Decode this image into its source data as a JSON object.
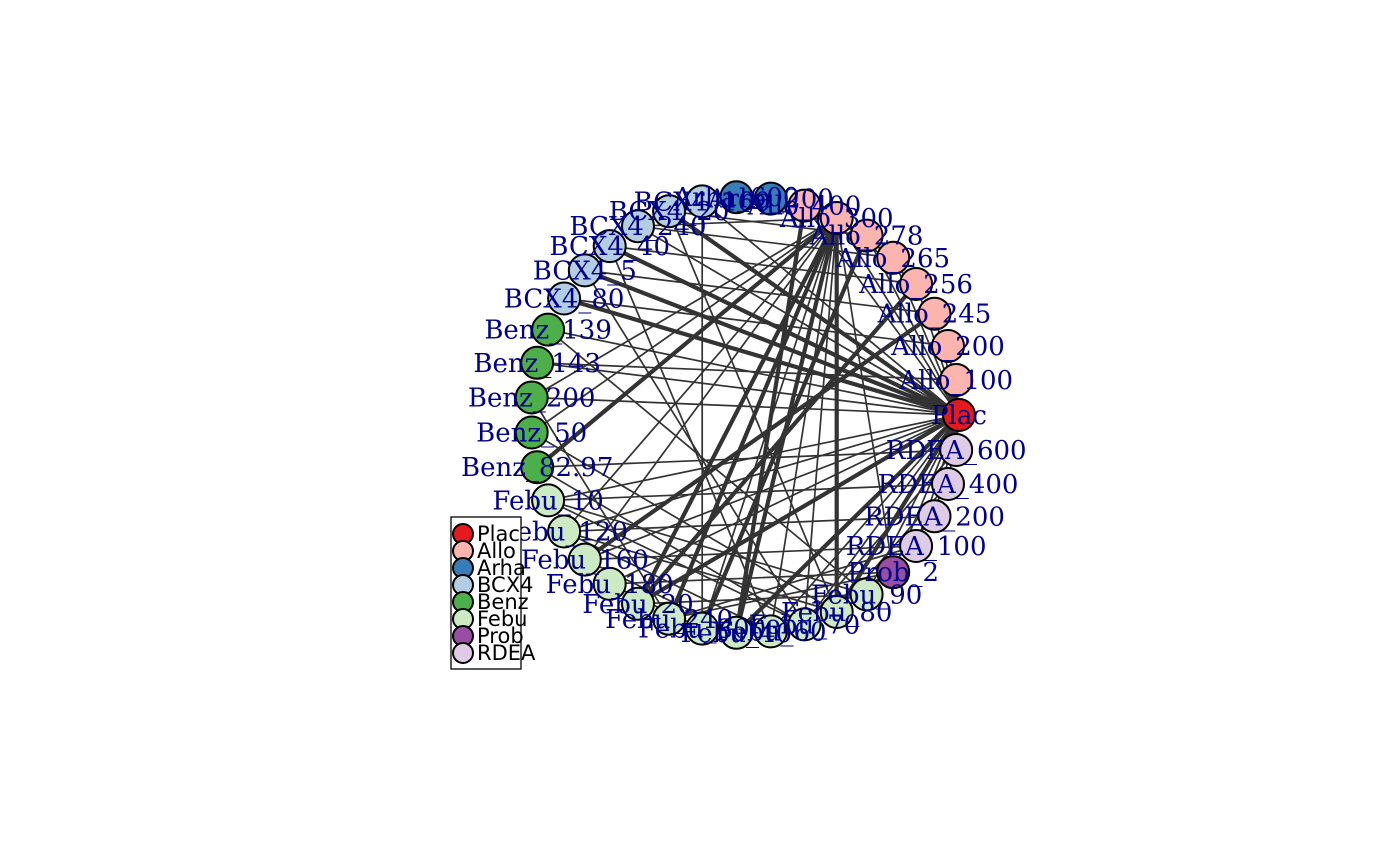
{
  "groups": [
    {
      "name": "Plac",
      "color": "#E41A1C"
    },
    {
      "name": "Allo",
      "color": "#FBB4AE"
    },
    {
      "name": "Arha",
      "color": "#377EB8"
    },
    {
      "name": "BCX4",
      "color": "#B3CDE3"
    },
    {
      "name": "Benz",
      "color": "#4DAF4A"
    },
    {
      "name": "Febu",
      "color": "#CCEBC5"
    },
    {
      "name": "Prob",
      "color": "#984EA3"
    },
    {
      "name": "RDEA",
      "color": "#DECBE4"
    }
  ],
  "nodes": [
    {
      "id": "Plac",
      "label": "Plac",
      "group": "Plac"
    },
    {
      "id": "Allo_100",
      "label": "Allo_100",
      "group": "Allo"
    },
    {
      "id": "Allo_200",
      "label": "Allo_200",
      "group": "Allo"
    },
    {
      "id": "Allo_245",
      "label": "Allo_245",
      "group": "Allo"
    },
    {
      "id": "Allo_256",
      "label": "Allo_256",
      "group": "Allo"
    },
    {
      "id": "Allo_265",
      "label": "Allo_265",
      "group": "Allo"
    },
    {
      "id": "Allo_278",
      "label": "Allo_278",
      "group": "Allo"
    },
    {
      "id": "Allo_300",
      "label": "Allo_300",
      "group": "Allo"
    },
    {
      "id": "Allo_400",
      "label": "Allo_400",
      "group": "Allo"
    },
    {
      "id": "Arha_200",
      "label": "Arha_200",
      "group": "Arha"
    },
    {
      "id": "Arha_600",
      "label": "Arha_600",
      "group": "Arha"
    },
    {
      "id": "BCX4_160",
      "label": "BCX4_160",
      "group": "BCX4"
    },
    {
      "id": "BCX4_20",
      "label": "BCX4_20",
      "group": "BCX4"
    },
    {
      "id": "BCX4_240",
      "label": "BCX4_240",
      "group": "BCX4"
    },
    {
      "id": "BCX4_40",
      "label": "BCX4_40",
      "group": "BCX4"
    },
    {
      "id": "BCX4_5",
      "label": "BCX4_5",
      "group": "BCX4"
    },
    {
      "id": "BCX4_80",
      "label": "BCX4_80",
      "group": "BCX4"
    },
    {
      "id": "Benz_139",
      "label": "Benz_139",
      "group": "Benz"
    },
    {
      "id": "Benz_143",
      "label": "Benz_143",
      "group": "Benz"
    },
    {
      "id": "Benz_200",
      "label": "Benz_200",
      "group": "Benz"
    },
    {
      "id": "Benz_50",
      "label": "Benz_50",
      "group": "Benz"
    },
    {
      "id": "Benz_82.97",
      "label": "Benz_82.97",
      "group": "Benz"
    },
    {
      "id": "Febu_10",
      "label": "Febu_10",
      "group": "Febu"
    },
    {
      "id": "Febu_120",
      "label": "Febu_120",
      "group": "Febu"
    },
    {
      "id": "Febu_160",
      "label": "Febu_160",
      "group": "Febu"
    },
    {
      "id": "Febu_180",
      "label": "Febu_180",
      "group": "Febu"
    },
    {
      "id": "Febu_20",
      "label": "Febu_20",
      "group": "Febu"
    },
    {
      "id": "Febu_240",
      "label": "Febu_240",
      "group": "Febu"
    },
    {
      "id": "Febu_300",
      "label": "Febu_300",
      "group": "Febu"
    },
    {
      "id": "Febu_40",
      "label": "Febu_40",
      "group": "Febu"
    },
    {
      "id": "Febu_60",
      "label": "Febu_60",
      "group": "Febu"
    },
    {
      "id": "Febu_70",
      "label": "Febu_70",
      "group": "Febu"
    },
    {
      "id": "Febu_80",
      "label": "Febu_80",
      "group": "Febu"
    },
    {
      "id": "Febu_90",
      "label": "Febu_90",
      "group": "Febu"
    },
    {
      "id": "Prob_2",
      "label": "Prob_2",
      "group": "Prob"
    },
    {
      "id": "RDEA_100",
      "label": "RDEA_100",
      "group": "RDEA"
    },
    {
      "id": "RDEA_200",
      "label": "RDEA_200",
      "group": "RDEA"
    },
    {
      "id": "RDEA_400",
      "label": "RDEA_400",
      "group": "RDEA"
    },
    {
      "id": "RDEA_600",
      "label": "RDEA_600",
      "group": "RDEA"
    }
  ],
  "edges": [
    {
      "from": "Plac",
      "to": "BCX4_20",
      "weight": 3
    },
    {
      "from": "Plac",
      "to": "BCX4_40",
      "weight": 3
    },
    {
      "from": "Plac",
      "to": "BCX4_5",
      "weight": 3
    },
    {
      "from": "Plac",
      "to": "BCX4_80",
      "weight": 3
    },
    {
      "from": "Plac",
      "to": "BCX4_160",
      "weight": 1
    },
    {
      "from": "Plac",
      "to": "BCX4_240",
      "weight": 1
    },
    {
      "from": "Plac",
      "to": "Benz_139",
      "weight": 1
    },
    {
      "from": "Plac",
      "to": "Benz_143",
      "weight": 1
    },
    {
      "from": "Plac",
      "to": "Benz_200",
      "weight": 1
    },
    {
      "from": "Plac",
      "to": "Febu_10",
      "weight": 1
    },
    {
      "from": "Plac",
      "to": "Febu_120",
      "weight": 1
    },
    {
      "from": "Plac",
      "to": "Febu_160",
      "weight": 1
    },
    {
      "from": "Plac",
      "to": "Febu_180",
      "weight": 1
    },
    {
      "from": "Plac",
      "to": "Febu_20",
      "weight": 3
    },
    {
      "from": "Plac",
      "to": "Febu_40",
      "weight": 3
    },
    {
      "from": "Plac",
      "to": "Febu_80",
      "weight": 3
    },
    {
      "from": "Plac",
      "to": "Febu_60",
      "weight": 1
    },
    {
      "from": "Plac",
      "to": "Febu_70",
      "weight": 1
    },
    {
      "from": "Plac",
      "to": "Febu_90",
      "weight": 1
    },
    {
      "from": "Plac",
      "to": "Allo_100",
      "weight": 1
    },
    {
      "from": "Plac",
      "to": "Allo_200",
      "weight": 1
    },
    {
      "from": "Plac",
      "to": "Allo_245",
      "weight": 1
    },
    {
      "from": "Plac",
      "to": "Allo_256",
      "weight": 1
    },
    {
      "from": "Plac",
      "to": "Allo_265",
      "weight": 1
    },
    {
      "from": "Plac",
      "to": "Allo_278",
      "weight": 1
    },
    {
      "from": "Plac",
      "to": "Allo_300",
      "weight": 1
    },
    {
      "from": "Plac",
      "to": "Allo_400",
      "weight": 1
    },
    {
      "from": "Plac",
      "to": "RDEA_100",
      "weight": 1
    },
    {
      "from": "Plac",
      "to": "RDEA_200",
      "weight": 1
    },
    {
      "from": "Plac",
      "to": "RDEA_400",
      "weight": 1
    },
    {
      "from": "Plac",
      "to": "RDEA_600",
      "weight": 1
    },
    {
      "from": "Plac",
      "to": "Prob_2",
      "weight": 1
    },
    {
      "from": "Allo_300",
      "to": "Febu_20",
      "weight": 3
    },
    {
      "from": "Allo_300",
      "to": "Febu_40",
      "weight": 3
    },
    {
      "from": "Allo_300",
      "to": "Febu_80",
      "weight": 3
    },
    {
      "from": "Allo_300",
      "to": "Febu_240",
      "weight": 3
    },
    {
      "from": "Allo_300",
      "to": "Benz_82.97",
      "weight": 3
    },
    {
      "from": "Allo_300",
      "to": "Benz_50",
      "weight": 1
    },
    {
      "from": "Allo_300",
      "to": "Benz_200",
      "weight": 1
    },
    {
      "from": "Allo_300",
      "to": "Febu_120",
      "weight": 1
    },
    {
      "from": "Allo_300",
      "to": "Febu_160",
      "weight": 1
    },
    {
      "from": "Allo_300",
      "to": "Febu_300",
      "weight": 1
    },
    {
      "from": "Allo_300",
      "to": "Febu_60",
      "weight": 1
    },
    {
      "from": "Allo_300",
      "to": "Febu_70",
      "weight": 1
    },
    {
      "from": "Allo_300",
      "to": "Prob_2",
      "weight": 1
    },
    {
      "from": "Allo_300",
      "to": "BCX4_240",
      "weight": 1
    },
    {
      "from": "Allo_300",
      "to": "BCX4_160",
      "weight": 1
    },
    {
      "from": "Allo_300",
      "to": "Allo_278",
      "weight": 1
    },
    {
      "from": "Allo_300",
      "to": "Allo_265",
      "weight": 1
    },
    {
      "from": "Allo_300",
      "to": "Allo_256",
      "weight": 1
    },
    {
      "from": "BCX4_20",
      "to": "Febu_80",
      "weight": 1
    },
    {
      "from": "BCX4_20",
      "to": "Allo_278",
      "weight": 1
    },
    {
      "from": "BCX4_160",
      "to": "Febu_300",
      "weight": 1
    },
    {
      "from": "BCX4_160",
      "to": "Allo_400",
      "weight": 1
    },
    {
      "from": "BCX4_240",
      "to": "Allo_265",
      "weight": 1
    },
    {
      "from": "BCX4_40",
      "to": "Allo_256",
      "weight": 1
    },
    {
      "from": "BCX4_5",
      "to": "Allo_245",
      "weight": 1
    },
    {
      "from": "BCX4_80",
      "to": "Allo_200",
      "weight": 1
    },
    {
      "from": "BCX4_40",
      "to": "Febu_60",
      "weight": 1
    },
    {
      "from": "BCX4_5",
      "to": "Febu_70",
      "weight": 1
    },
    {
      "from": "Benz_139",
      "to": "Febu_90",
      "weight": 1
    },
    {
      "from": "Benz_143",
      "to": "Allo_100",
      "weight": 1
    },
    {
      "from": "Benz_50",
      "to": "Febu_80",
      "weight": 1
    },
    {
      "from": "Benz_82.97",
      "to": "RDEA_600",
      "weight": 1
    },
    {
      "from": "Benz_82.97",
      "to": "Febu_70",
      "weight": 1
    },
    {
      "from": "Benz_200",
      "to": "Febu_240",
      "weight": 1
    },
    {
      "from": "Febu_10",
      "to": "Febu_70",
      "weight": 1
    },
    {
      "from": "Febu_10",
      "to": "RDEA_400",
      "weight": 1
    },
    {
      "from": "Febu_10",
      "to": "Febu_90",
      "weight": 1
    },
    {
      "from": "Febu_120",
      "to": "Febu_60",
      "weight": 1
    },
    {
      "from": "Febu_120",
      "to": "Febu_80",
      "weight": 1
    },
    {
      "from": "Febu_120",
      "to": "RDEA_200",
      "weight": 1
    },
    {
      "from": "Febu_160",
      "to": "Febu_40",
      "weight": 1
    },
    {
      "from": "Febu_160",
      "to": "RDEA_100",
      "weight": 1
    },
    {
      "from": "Febu_160",
      "to": "Allo_245",
      "weight": 3
    },
    {
      "from": "Febu_180",
      "to": "Febu_300",
      "weight": 1
    },
    {
      "from": "Febu_180",
      "to": "Prob_2",
      "weight": 1
    },
    {
      "from": "Febu_20",
      "to": "Allo_256",
      "weight": 3
    },
    {
      "from": "Febu_20",
      "to": "Febu_90",
      "weight": 1
    },
    {
      "from": "Febu_40",
      "to": "Allo_400",
      "weight": 3
    },
    {
      "from": "Febu_300",
      "to": "Allo_278",
      "weight": 3
    },
    {
      "from": "Febu_60",
      "to": "Prob_2",
      "weight": 1
    },
    {
      "from": "Febu_70",
      "to": "RDEA_600",
      "weight": 1
    },
    {
      "from": "Febu_80",
      "to": "RDEA_400",
      "weight": 1
    },
    {
      "from": "Febu_90",
      "to": "RDEA_200",
      "weight": 1
    },
    {
      "from": "Febu_240",
      "to": "Prob_2",
      "weight": 1
    },
    {
      "from": "Febu_240",
      "to": "RDEA_100",
      "weight": 1
    }
  ]
}
